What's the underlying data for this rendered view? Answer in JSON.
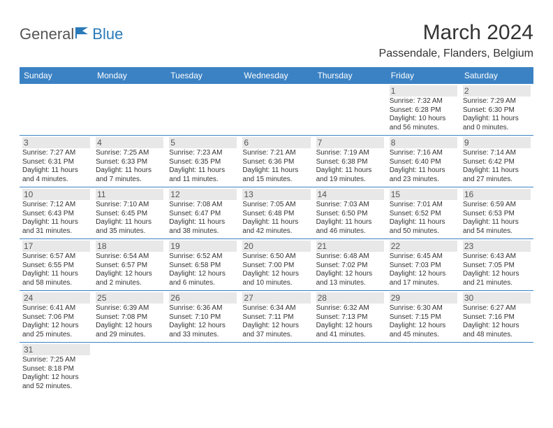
{
  "logo": {
    "general": "General",
    "blue": "Blue"
  },
  "title": "March 2024",
  "location": "Passendale, Flanders, Belgium",
  "colors": {
    "header_bg": "#3b82c4",
    "header_text": "#ffffff",
    "border": "#3b82c4",
    "daynum_bg": "#e8e8e8",
    "logo_blue": "#2a7ab9"
  },
  "weekdays": [
    "Sunday",
    "Monday",
    "Tuesday",
    "Wednesday",
    "Thursday",
    "Friday",
    "Saturday"
  ],
  "weeks": [
    [
      {
        "empty": true
      },
      {
        "empty": true
      },
      {
        "empty": true
      },
      {
        "empty": true
      },
      {
        "empty": true
      },
      {
        "day": "1",
        "sunrise": "Sunrise: 7:32 AM",
        "sunset": "Sunset: 6:28 PM",
        "daylight": "Daylight: 10 hours and 56 minutes."
      },
      {
        "day": "2",
        "sunrise": "Sunrise: 7:29 AM",
        "sunset": "Sunset: 6:30 PM",
        "daylight": "Daylight: 11 hours and 0 minutes."
      }
    ],
    [
      {
        "day": "3",
        "sunrise": "Sunrise: 7:27 AM",
        "sunset": "Sunset: 6:31 PM",
        "daylight": "Daylight: 11 hours and 4 minutes."
      },
      {
        "day": "4",
        "sunrise": "Sunrise: 7:25 AM",
        "sunset": "Sunset: 6:33 PM",
        "daylight": "Daylight: 11 hours and 7 minutes."
      },
      {
        "day": "5",
        "sunrise": "Sunrise: 7:23 AM",
        "sunset": "Sunset: 6:35 PM",
        "daylight": "Daylight: 11 hours and 11 minutes."
      },
      {
        "day": "6",
        "sunrise": "Sunrise: 7:21 AM",
        "sunset": "Sunset: 6:36 PM",
        "daylight": "Daylight: 11 hours and 15 minutes."
      },
      {
        "day": "7",
        "sunrise": "Sunrise: 7:19 AM",
        "sunset": "Sunset: 6:38 PM",
        "daylight": "Daylight: 11 hours and 19 minutes."
      },
      {
        "day": "8",
        "sunrise": "Sunrise: 7:16 AM",
        "sunset": "Sunset: 6:40 PM",
        "daylight": "Daylight: 11 hours and 23 minutes."
      },
      {
        "day": "9",
        "sunrise": "Sunrise: 7:14 AM",
        "sunset": "Sunset: 6:42 PM",
        "daylight": "Daylight: 11 hours and 27 minutes."
      }
    ],
    [
      {
        "day": "10",
        "sunrise": "Sunrise: 7:12 AM",
        "sunset": "Sunset: 6:43 PM",
        "daylight": "Daylight: 11 hours and 31 minutes."
      },
      {
        "day": "11",
        "sunrise": "Sunrise: 7:10 AM",
        "sunset": "Sunset: 6:45 PM",
        "daylight": "Daylight: 11 hours and 35 minutes."
      },
      {
        "day": "12",
        "sunrise": "Sunrise: 7:08 AM",
        "sunset": "Sunset: 6:47 PM",
        "daylight": "Daylight: 11 hours and 38 minutes."
      },
      {
        "day": "13",
        "sunrise": "Sunrise: 7:05 AM",
        "sunset": "Sunset: 6:48 PM",
        "daylight": "Daylight: 11 hours and 42 minutes."
      },
      {
        "day": "14",
        "sunrise": "Sunrise: 7:03 AM",
        "sunset": "Sunset: 6:50 PM",
        "daylight": "Daylight: 11 hours and 46 minutes."
      },
      {
        "day": "15",
        "sunrise": "Sunrise: 7:01 AM",
        "sunset": "Sunset: 6:52 PM",
        "daylight": "Daylight: 11 hours and 50 minutes."
      },
      {
        "day": "16",
        "sunrise": "Sunrise: 6:59 AM",
        "sunset": "Sunset: 6:53 PM",
        "daylight": "Daylight: 11 hours and 54 minutes."
      }
    ],
    [
      {
        "day": "17",
        "sunrise": "Sunrise: 6:57 AM",
        "sunset": "Sunset: 6:55 PM",
        "daylight": "Daylight: 11 hours and 58 minutes."
      },
      {
        "day": "18",
        "sunrise": "Sunrise: 6:54 AM",
        "sunset": "Sunset: 6:57 PM",
        "daylight": "Daylight: 12 hours and 2 minutes."
      },
      {
        "day": "19",
        "sunrise": "Sunrise: 6:52 AM",
        "sunset": "Sunset: 6:58 PM",
        "daylight": "Daylight: 12 hours and 6 minutes."
      },
      {
        "day": "20",
        "sunrise": "Sunrise: 6:50 AM",
        "sunset": "Sunset: 7:00 PM",
        "daylight": "Daylight: 12 hours and 10 minutes."
      },
      {
        "day": "21",
        "sunrise": "Sunrise: 6:48 AM",
        "sunset": "Sunset: 7:02 PM",
        "daylight": "Daylight: 12 hours and 13 minutes."
      },
      {
        "day": "22",
        "sunrise": "Sunrise: 6:45 AM",
        "sunset": "Sunset: 7:03 PM",
        "daylight": "Daylight: 12 hours and 17 minutes."
      },
      {
        "day": "23",
        "sunrise": "Sunrise: 6:43 AM",
        "sunset": "Sunset: 7:05 PM",
        "daylight": "Daylight: 12 hours and 21 minutes."
      }
    ],
    [
      {
        "day": "24",
        "sunrise": "Sunrise: 6:41 AM",
        "sunset": "Sunset: 7:06 PM",
        "daylight": "Daylight: 12 hours and 25 minutes."
      },
      {
        "day": "25",
        "sunrise": "Sunrise: 6:39 AM",
        "sunset": "Sunset: 7:08 PM",
        "daylight": "Daylight: 12 hours and 29 minutes."
      },
      {
        "day": "26",
        "sunrise": "Sunrise: 6:36 AM",
        "sunset": "Sunset: 7:10 PM",
        "daylight": "Daylight: 12 hours and 33 minutes."
      },
      {
        "day": "27",
        "sunrise": "Sunrise: 6:34 AM",
        "sunset": "Sunset: 7:11 PM",
        "daylight": "Daylight: 12 hours and 37 minutes."
      },
      {
        "day": "28",
        "sunrise": "Sunrise: 6:32 AM",
        "sunset": "Sunset: 7:13 PM",
        "daylight": "Daylight: 12 hours and 41 minutes."
      },
      {
        "day": "29",
        "sunrise": "Sunrise: 6:30 AM",
        "sunset": "Sunset: 7:15 PM",
        "daylight": "Daylight: 12 hours and 45 minutes."
      },
      {
        "day": "30",
        "sunrise": "Sunrise: 6:27 AM",
        "sunset": "Sunset: 7:16 PM",
        "daylight": "Daylight: 12 hours and 48 minutes."
      }
    ],
    [
      {
        "day": "31",
        "sunrise": "Sunrise: 7:25 AM",
        "sunset": "Sunset: 8:18 PM",
        "daylight": "Daylight: 12 hours and 52 minutes."
      },
      {
        "empty": true
      },
      {
        "empty": true
      },
      {
        "empty": true
      },
      {
        "empty": true
      },
      {
        "empty": true
      },
      {
        "empty": true
      }
    ]
  ]
}
